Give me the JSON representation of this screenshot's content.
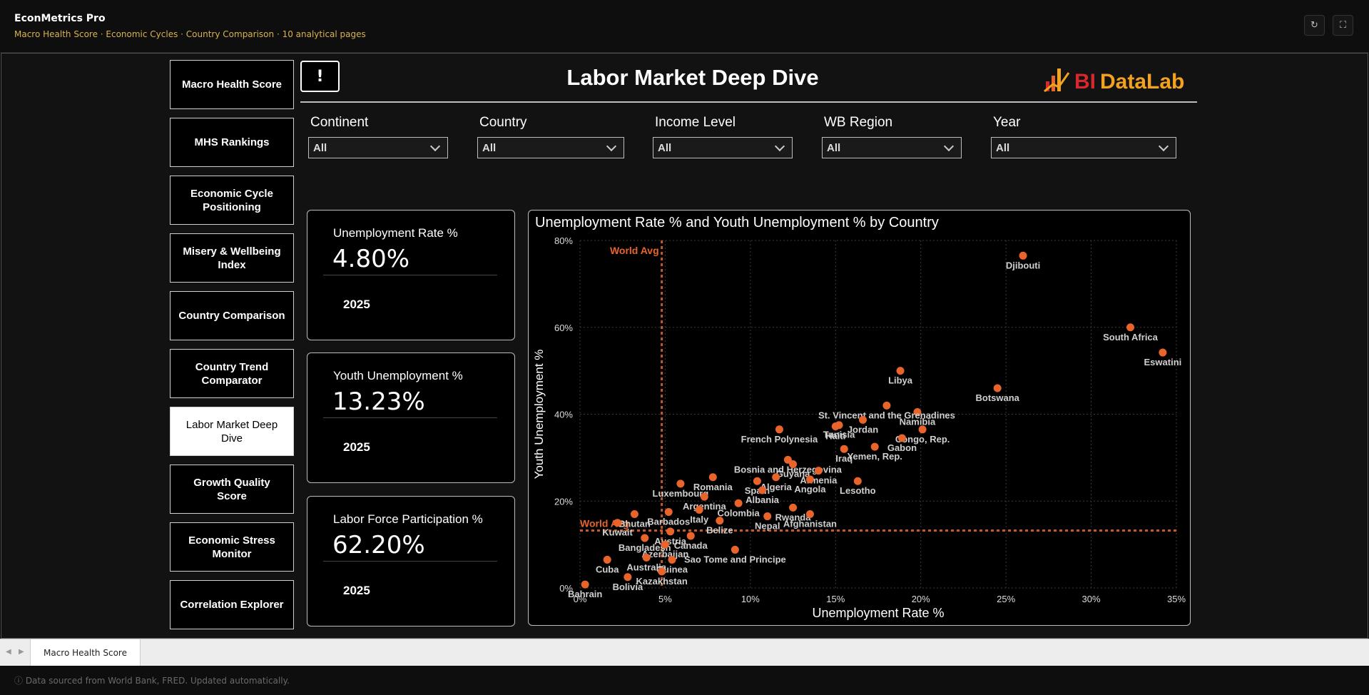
{
  "app": {
    "title": "EconMetrics Pro",
    "subtitle": "Macro Health Score · Economic Cycles · Country Comparison · 10 analytical pages",
    "refresh_icon": "↻",
    "fullscreen_icon": "⛶"
  },
  "nav": [
    {
      "label": "Macro Health Score",
      "active": false
    },
    {
      "label": "MHS Rankings",
      "active": false
    },
    {
      "label": "Economic Cycle Positioning",
      "active": false
    },
    {
      "label": "Misery & Wellbeing Index",
      "active": false
    },
    {
      "label": "Country Comparison",
      "active": false
    },
    {
      "label": "Country Trend Comparator",
      "active": false
    },
    {
      "label": "Labor Market Deep Dive",
      "active": true
    },
    {
      "label": "Growth Quality Score",
      "active": false
    },
    {
      "label": "Economic Stress Monitor",
      "active": false
    },
    {
      "label": "Correlation Explorer",
      "active": false
    }
  ],
  "header": {
    "info_label": "!",
    "title": "Labor Market Deep Dive",
    "logo_bi": "BI",
    "logo_datalab": "DataLab"
  },
  "filters": [
    {
      "label": "Continent",
      "value": "All"
    },
    {
      "label": "Country",
      "value": "All"
    },
    {
      "label": "Income Level",
      "value": "All"
    },
    {
      "label": "WB Region",
      "value": "All"
    },
    {
      "label": "Year",
      "value": "All"
    }
  ],
  "kpis": [
    {
      "title": "Unemployment Rate %",
      "value": "4.80%",
      "year": "2025"
    },
    {
      "title": "Youth Unemployment %",
      "value": "13.23%",
      "year": "2025"
    },
    {
      "title": "Labor Force Participation %",
      "value": "62.20%",
      "year": "2025"
    }
  ],
  "chart_data": {
    "type": "scatter",
    "title": "Unemployment Rate % and Youth Unemployment % by Country",
    "xlabel": "Unemployment Rate %",
    "ylabel": "Youth Unemployment %",
    "xlim": [
      0,
      35
    ],
    "ylim": [
      0,
      80
    ],
    "x_ticks": [
      0,
      5,
      10,
      15,
      20,
      25,
      30,
      35
    ],
    "x_tick_labels": [
      "0%",
      "5%",
      "10%",
      "15%",
      "20%",
      "25%",
      "30%",
      "35%"
    ],
    "y_ticks": [
      0,
      20,
      40,
      60,
      80
    ],
    "y_tick_labels": [
      "0%",
      "20%",
      "40%",
      "60%",
      "80%"
    ],
    "ref_lines": {
      "x": 4.8,
      "y": 13.23,
      "x_label": "World Avg",
      "y_label": "World Avg"
    },
    "point_color": "#e8642b",
    "ref_color": "#c95a26",
    "points": [
      {
        "label": "Djibouti",
        "x": 26.0,
        "y": 76.5
      },
      {
        "label": "South Africa",
        "x": 32.3,
        "y": 60.0
      },
      {
        "label": "Eswatini",
        "x": 34.2,
        "y": 54.2
      },
      {
        "label": "Libya",
        "x": 18.8,
        "y": 50.0
      },
      {
        "label": "Botswana",
        "x": 24.5,
        "y": 46.0
      },
      {
        "label": "Namibia",
        "x": 19.8,
        "y": 40.5
      },
      {
        "label": "St. Vincent and the Grenadines",
        "x": 18.0,
        "y": 42.0
      },
      {
        "label": "Tunisia",
        "x": 15.2,
        "y": 37.5
      },
      {
        "label": "Jordan",
        "x": 16.6,
        "y": 38.7
      },
      {
        "label": "Congo, Rep.",
        "x": 20.1,
        "y": 36.5
      },
      {
        "label": "Haiti",
        "x": 15.0,
        "y": 37.2
      },
      {
        "label": "Gabon",
        "x": 18.9,
        "y": 34.5
      },
      {
        "label": "French Polynesia",
        "x": 11.7,
        "y": 36.5
      },
      {
        "label": "Iraq",
        "x": 15.5,
        "y": 32.0
      },
      {
        "label": "Yemen, Rep.",
        "x": 17.3,
        "y": 32.5
      },
      {
        "label": "Bosnia and Herzegovina",
        "x": 12.2,
        "y": 29.5
      },
      {
        "label": "Guyana",
        "x": 12.5,
        "y": 28.5
      },
      {
        "label": "Armenia",
        "x": 14.0,
        "y": 27.0
      },
      {
        "label": "Romania",
        "x": 7.8,
        "y": 25.5
      },
      {
        "label": "Spain",
        "x": 10.4,
        "y": 24.6
      },
      {
        "label": "Algeria",
        "x": 11.5,
        "y": 25.5
      },
      {
        "label": "Luxembourg",
        "x": 5.9,
        "y": 24.0
      },
      {
        "label": "Angola",
        "x": 13.5,
        "y": 25.0
      },
      {
        "label": "Lesotho",
        "x": 16.3,
        "y": 24.6
      },
      {
        "label": "Argentina",
        "x": 7.3,
        "y": 21.0
      },
      {
        "label": "Albania",
        "x": 10.7,
        "y": 22.5
      },
      {
        "label": "Colombia",
        "x": 9.3,
        "y": 19.5
      },
      {
        "label": "Bhutan",
        "x": 3.2,
        "y": 17.0
      },
      {
        "label": "Barbados",
        "x": 5.2,
        "y": 17.5
      },
      {
        "label": "Italy",
        "x": 7.0,
        "y": 18.0
      },
      {
        "label": "Rwanda",
        "x": 12.5,
        "y": 18.5
      },
      {
        "label": "Belize",
        "x": 8.2,
        "y": 15.5
      },
      {
        "label": "Nepal",
        "x": 11.0,
        "y": 16.5
      },
      {
        "label": "Afghanistan",
        "x": 13.5,
        "y": 17.0
      },
      {
        "label": "Kuwait",
        "x": 2.2,
        "y": 15.0
      },
      {
        "label": "Austria",
        "x": 5.3,
        "y": 13.0
      },
      {
        "label": "Bangladesh",
        "x": 3.8,
        "y": 11.5
      },
      {
        "label": "Azerbaijan",
        "x": 5.0,
        "y": 10.0
      },
      {
        "label": "Canada",
        "x": 6.5,
        "y": 12.0
      },
      {
        "label": "Sao Tome and Principe",
        "x": 9.1,
        "y": 8.8
      },
      {
        "label": "Cuba",
        "x": 1.6,
        "y": 6.5
      },
      {
        "label": "Australia",
        "x": 3.9,
        "y": 7.0
      },
      {
        "label": "Guinea",
        "x": 5.4,
        "y": 6.5
      },
      {
        "label": "Kazakhstan",
        "x": 4.8,
        "y": 3.8
      },
      {
        "label": "Bahrain",
        "x": 0.3,
        "y": 0.8
      },
      {
        "label": "Bolivia",
        "x": 2.8,
        "y": 2.5
      }
    ]
  },
  "tabs": [
    {
      "label": "Macro Health Score"
    }
  ],
  "footer": {
    "text": "ⓘ  Data sourced from World Bank, FRED. Updated automatically."
  }
}
